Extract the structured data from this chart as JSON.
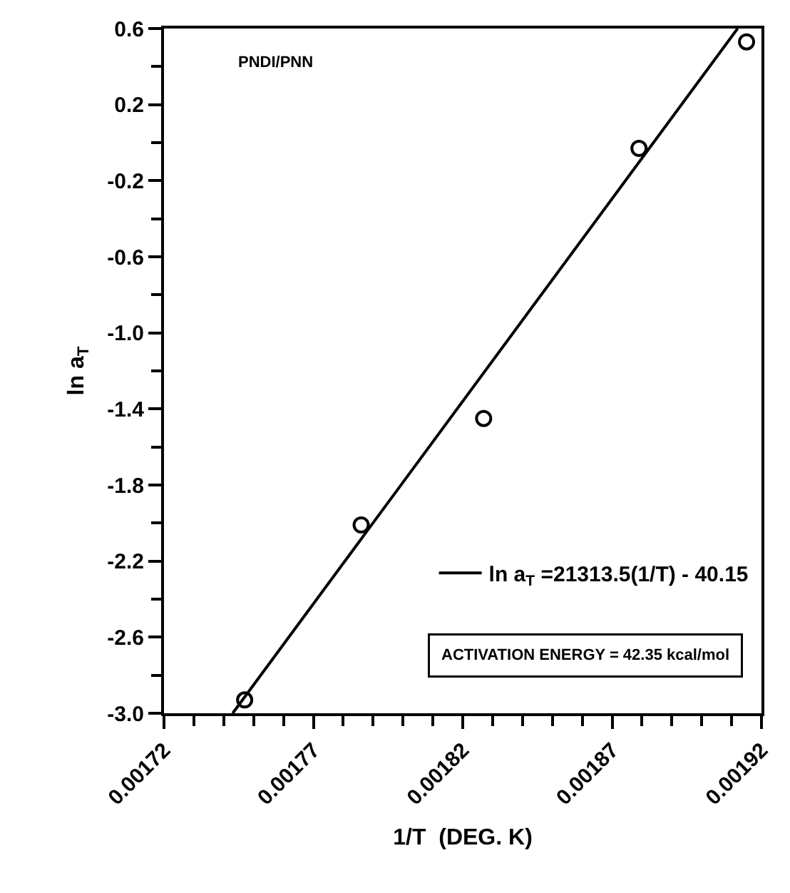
{
  "chart_data": {
    "type": "scatter",
    "xlabel": "1/T  (DEG. K)",
    "ylabel": "ln a$_{T}$",
    "xlim": [
      0.00172,
      0.00192
    ],
    "xticks": [
      0.00172,
      0.00177,
      0.00182,
      0.00187,
      0.00192
    ],
    "ylim": [
      -3.0,
      0.6
    ],
    "yticks": [
      {
        "value": 0.6,
        "label": "0.6"
      },
      {
        "value": 0.2,
        "label": "0.2"
      },
      {
        "value": -0.2,
        "label": "-0.2"
      },
      {
        "value": -0.6,
        "label": "-0.6"
      },
      {
        "value": -1.0,
        "label": "-1.0"
      },
      {
        "value": -1.4,
        "label": "-1.4"
      },
      {
        "value": -1.8,
        "label": "-1.8"
      },
      {
        "value": -2.2,
        "label": "-2.2"
      },
      {
        "value": -2.6,
        "label": "-2.6"
      },
      {
        "value": -3.0,
        "label": "-3.0"
      }
    ],
    "x": [
      0.001747,
      0.001786,
      0.001827,
      0.001879,
      0.001915
    ],
    "series": [
      {
        "type": "scatter",
        "color": "#000000",
        "marker": "circle",
        "values": [
          -2.93,
          -2.01,
          -1.45,
          -0.03,
          0.53
        ]
      },
      {
        "type": "line",
        "name": "ln a$_{T}$ =21313.5(1/T) - 40.15",
        "color": "#000000",
        "line_style": "solid",
        "x": [
          0.001743,
          0.001912
        ],
        "values": [
          -3.0,
          0.6
        ]
      }
    ],
    "annotations": [
      "PNDI/PNN",
      "ACTIVATION ENERGY = 42.35 kcal/mol"
    ],
    "legend": "bottom right",
    "grid": false
  }
}
